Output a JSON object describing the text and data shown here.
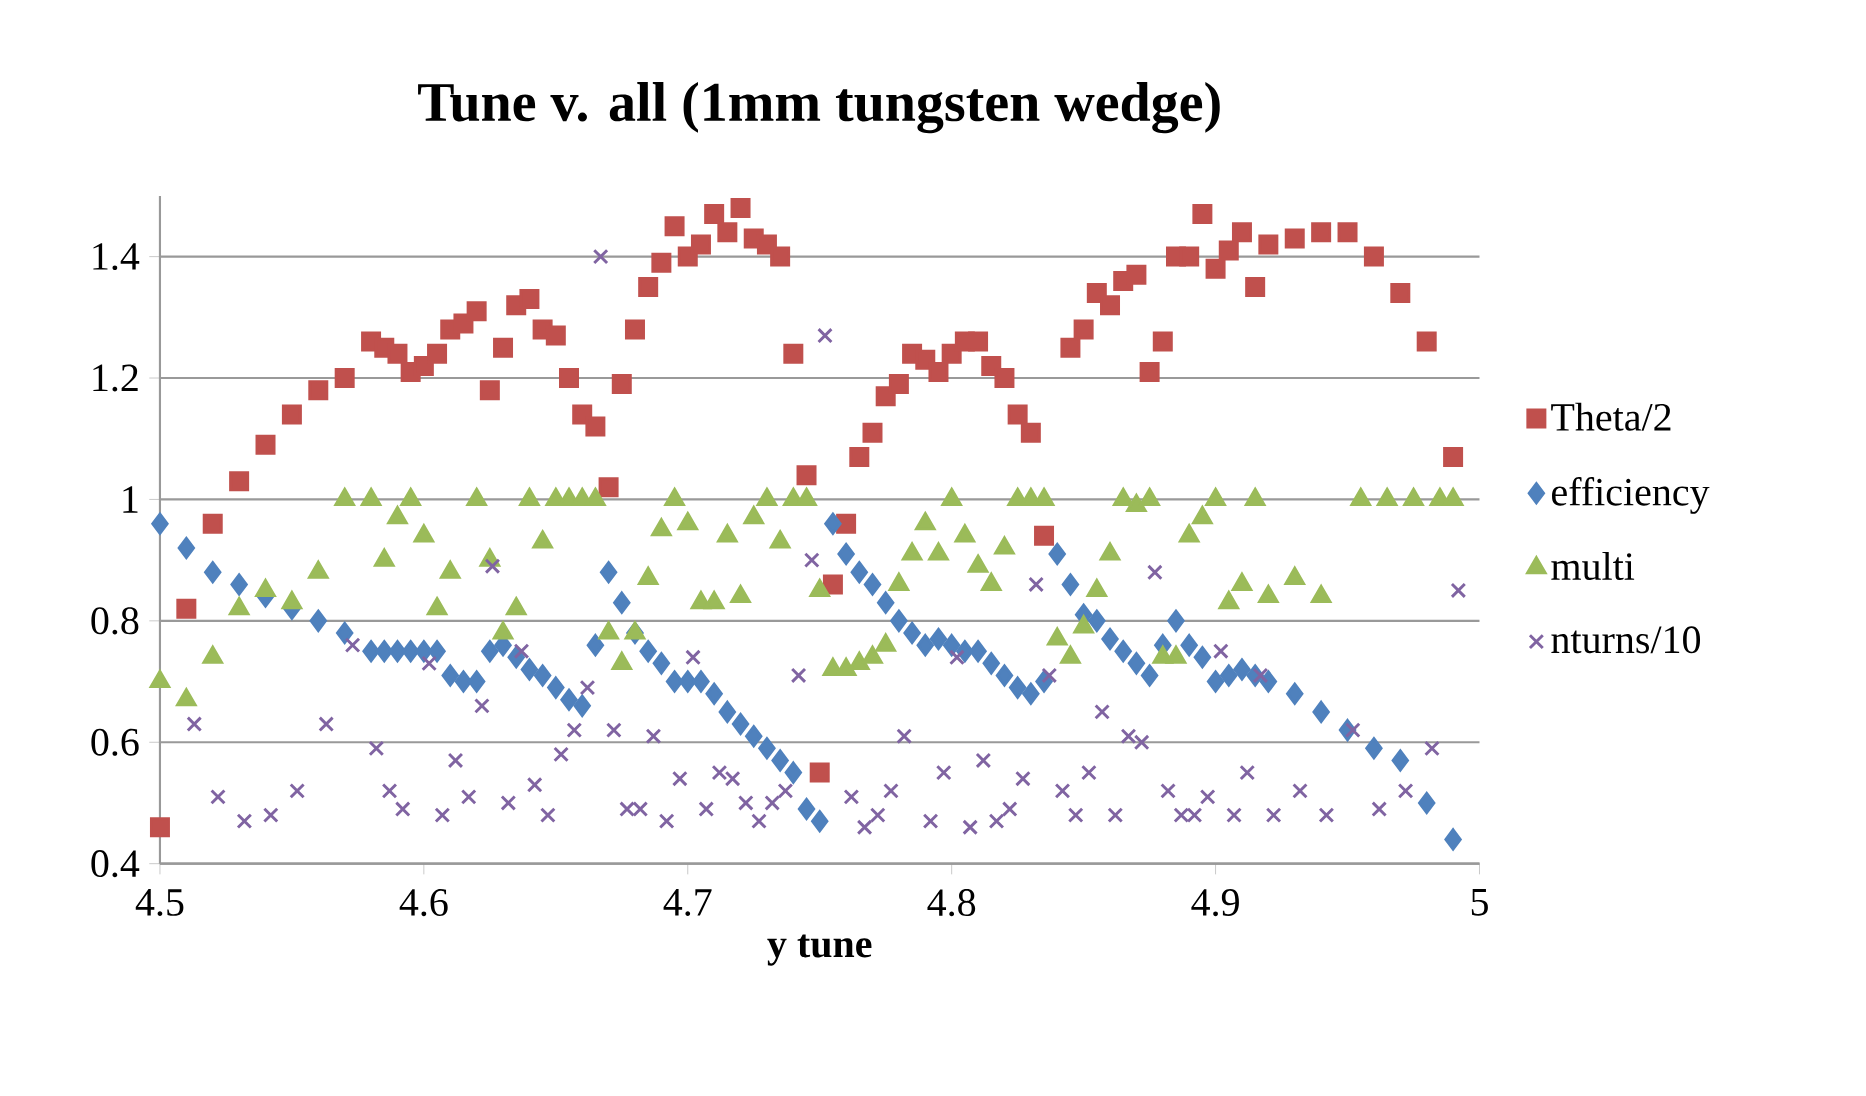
{
  "chart_data": {
    "type": "scatter",
    "title": "Tune v. all (1mm tungsten wedge)",
    "xlabel": "y tune",
    "xlim": [
      4.5,
      5
    ],
    "xticks": [
      4.5,
      4.6,
      4.7,
      4.8,
      4.9,
      5
    ],
    "ylim": [
      0.4,
      1.5
    ],
    "yticks": [
      0.4,
      0.6,
      0.8,
      1,
      1.2,
      1.4
    ],
    "grid": "y",
    "legend": "right",
    "series": [
      {
        "name": "Theta/2",
        "color": "#c0504d",
        "marker": "square",
        "x": [
          4.5,
          4.51,
          4.52,
          4.53,
          4.54,
          4.55,
          4.56,
          4.57,
          4.58,
          4.585,
          4.59,
          4.595,
          4.6,
          4.605,
          4.61,
          4.615,
          4.62,
          4.625,
          4.63,
          4.635,
          4.64,
          4.645,
          4.65,
          4.655,
          4.66,
          4.665,
          4.67,
          4.675,
          4.68,
          4.685,
          4.69,
          4.695,
          4.7,
          4.705,
          4.71,
          4.715,
          4.72,
          4.725,
          4.73,
          4.735,
          4.74,
          4.745,
          4.75,
          4.755,
          4.76,
          4.765,
          4.77,
          4.775,
          4.78,
          4.785,
          4.79,
          4.795,
          4.8,
          4.805,
          4.81,
          4.815,
          4.82,
          4.825,
          4.83,
          4.835,
          4.845,
          4.85,
          4.855,
          4.86,
          4.865,
          4.87,
          4.875,
          4.88,
          4.885,
          4.89,
          4.895,
          4.9,
          4.905,
          4.91,
          4.915,
          4.92,
          4.93,
          4.94,
          4.95,
          4.96,
          4.97,
          4.98,
          4.99
        ],
        "values": [
          0.46,
          0.82,
          0.96,
          1.03,
          1.09,
          1.14,
          1.18,
          1.2,
          1.26,
          1.25,
          1.24,
          1.21,
          1.22,
          1.24,
          1.28,
          1.29,
          1.31,
          1.18,
          1.25,
          1.32,
          1.33,
          1.28,
          1.27,
          1.2,
          1.14,
          1.12,
          1.02,
          1.19,
          1.28,
          1.35,
          1.39,
          1.45,
          1.4,
          1.42,
          1.47,
          1.44,
          1.48,
          1.43,
          1.42,
          1.4,
          1.24,
          1.04,
          0.55,
          0.86,
          0.96,
          1.07,
          1.11,
          1.17,
          1.19,
          1.24,
          1.23,
          1.21,
          1.24,
          1.26,
          1.26,
          1.22,
          1.2,
          1.14,
          1.11,
          0.94,
          1.25,
          1.28,
          1.34,
          1.32,
          1.36,
          1.37,
          1.21,
          1.26,
          1.4,
          1.4,
          1.47,
          1.38,
          1.41,
          1.44,
          1.35,
          1.42,
          1.43,
          1.44,
          1.44,
          1.4,
          1.34,
          1.26,
          1.07
        ]
      },
      {
        "name": "efficiency",
        "color": "#4f81bd",
        "marker": "diamond",
        "x": [
          4.5,
          4.51,
          4.52,
          4.53,
          4.54,
          4.55,
          4.56,
          4.57,
          4.58,
          4.585,
          4.59,
          4.595,
          4.6,
          4.605,
          4.61,
          4.615,
          4.62,
          4.625,
          4.63,
          4.635,
          4.64,
          4.645,
          4.65,
          4.655,
          4.66,
          4.665,
          4.67,
          4.675,
          4.68,
          4.685,
          4.69,
          4.695,
          4.7,
          4.705,
          4.71,
          4.715,
          4.72,
          4.725,
          4.73,
          4.735,
          4.74,
          4.745,
          4.75,
          4.755,
          4.76,
          4.765,
          4.77,
          4.775,
          4.78,
          4.785,
          4.79,
          4.795,
          4.8,
          4.805,
          4.81,
          4.815,
          4.82,
          4.825,
          4.83,
          4.835,
          4.84,
          4.845,
          4.85,
          4.855,
          4.86,
          4.865,
          4.87,
          4.875,
          4.88,
          4.885,
          4.89,
          4.895,
          4.9,
          4.905,
          4.91,
          4.915,
          4.92,
          4.93,
          4.94,
          4.95,
          4.96,
          4.97,
          4.98,
          4.99
        ],
        "values": [
          0.96,
          0.92,
          0.88,
          0.86,
          0.84,
          0.82,
          0.8,
          0.78,
          0.75,
          0.75,
          0.75,
          0.75,
          0.75,
          0.75,
          0.71,
          0.7,
          0.7,
          0.75,
          0.76,
          0.74,
          0.72,
          0.71,
          0.69,
          0.67,
          0.66,
          0.76,
          0.88,
          0.83,
          0.78,
          0.75,
          0.73,
          0.7,
          0.7,
          0.7,
          0.68,
          0.65,
          0.63,
          0.61,
          0.59,
          0.57,
          0.55,
          0.49,
          0.47,
          0.96,
          0.91,
          0.88,
          0.86,
          0.83,
          0.8,
          0.78,
          0.76,
          0.77,
          0.76,
          0.75,
          0.75,
          0.73,
          0.71,
          0.69,
          0.68,
          0.7,
          0.91,
          0.86,
          0.81,
          0.8,
          0.77,
          0.75,
          0.73,
          0.71,
          0.76,
          0.8,
          0.76,
          0.74,
          0.7,
          0.71,
          0.72,
          0.71,
          0.7,
          0.68,
          0.65,
          0.62,
          0.59,
          0.57,
          0.5,
          0.44
        ]
      },
      {
        "name": "multi",
        "color": "#9bbb59",
        "marker": "triangle",
        "x": [
          4.5,
          4.51,
          4.52,
          4.53,
          4.54,
          4.55,
          4.56,
          4.57,
          4.58,
          4.585,
          4.59,
          4.595,
          4.6,
          4.605,
          4.61,
          4.62,
          4.625,
          4.63,
          4.635,
          4.64,
          4.645,
          4.65,
          4.655,
          4.66,
          4.665,
          4.67,
          4.675,
          4.68,
          4.685,
          4.69,
          4.695,
          4.7,
          4.705,
          4.71,
          4.715,
          4.72,
          4.725,
          4.73,
          4.735,
          4.74,
          4.745,
          4.75,
          4.755,
          4.76,
          4.765,
          4.77,
          4.775,
          4.78,
          4.785,
          4.79,
          4.795,
          4.8,
          4.805,
          4.81,
          4.815,
          4.82,
          4.825,
          4.83,
          4.835,
          4.84,
          4.845,
          4.85,
          4.855,
          4.86,
          4.865,
          4.87,
          4.875,
          4.88,
          4.885,
          4.89,
          4.895,
          4.9,
          4.905,
          4.91,
          4.915,
          4.92,
          4.93,
          4.94,
          4.955,
          4.965,
          4.975,
          4.985,
          4.99
        ],
        "values": [
          0.7,
          0.67,
          0.74,
          0.82,
          0.85,
          0.83,
          0.88,
          1,
          1,
          0.9,
          0.97,
          1,
          0.94,
          0.82,
          0.88,
          1,
          0.9,
          0.78,
          0.82,
          1,
          0.93,
          1,
          1,
          1,
          1,
          0.78,
          0.73,
          0.78,
          0.87,
          0.95,
          1,
          0.96,
          0.83,
          0.83,
          0.94,
          0.84,
          0.97,
          1,
          0.93,
          1,
          1,
          0.85,
          0.72,
          0.72,
          0.73,
          0.74,
          0.76,
          0.86,
          0.91,
          0.96,
          0.91,
          1,
          0.94,
          0.89,
          0.86,
          0.92,
          1,
          1,
          1,
          0.77,
          0.74,
          0.79,
          0.85,
          0.91,
          1,
          0.99,
          1,
          0.74,
          0.74,
          0.94,
          0.97,
          1,
          0.83,
          0.86,
          1,
          0.84,
          0.87,
          0.84,
          1,
          1,
          1,
          1,
          1
        ]
      },
      {
        "name": "nturns/10",
        "color": "#8064a2",
        "marker": "cross",
        "x": [
          4.513,
          4.522,
          4.532,
          4.542,
          4.552,
          4.563,
          4.573,
          4.582,
          4.587,
          4.592,
          4.602,
          4.607,
          4.612,
          4.617,
          4.622,
          4.626,
          4.632,
          4.637,
          4.642,
          4.647,
          4.652,
          4.657,
          4.662,
          4.667,
          4.672,
          4.677,
          4.682,
          4.687,
          4.692,
          4.697,
          4.702,
          4.707,
          4.712,
          4.717,
          4.722,
          4.727,
          4.732,
          4.737,
          4.742,
          4.747,
          4.752,
          4.762,
          4.767,
          4.772,
          4.777,
          4.782,
          4.792,
          4.797,
          4.802,
          4.807,
          4.812,
          4.817,
          4.822,
          4.827,
          4.832,
          4.837,
          4.842,
          4.847,
          4.852,
          4.857,
          4.862,
          4.867,
          4.872,
          4.877,
          4.882,
          4.887,
          4.892,
          4.897,
          4.902,
          4.907,
          4.912,
          4.917,
          4.922,
          4.932,
          4.942,
          4.952,
          4.962,
          4.972,
          4.982,
          4.992
        ],
        "values": [
          0.63,
          0.51,
          0.47,
          0.48,
          0.52,
          0.63,
          0.76,
          0.59,
          0.52,
          0.49,
          0.73,
          0.48,
          0.57,
          0.51,
          0.66,
          0.89,
          0.5,
          0.75,
          0.53,
          0.48,
          0.58,
          0.62,
          0.69,
          1.4,
          0.62,
          0.49,
          0.49,
          0.61,
          0.47,
          0.54,
          0.74,
          0.49,
          0.55,
          0.54,
          0.5,
          0.47,
          0.5,
          0.52,
          0.71,
          0.9,
          1.27,
          0.51,
          0.46,
          0.48,
          0.52,
          0.61,
          0.47,
          0.55,
          0.74,
          0.46,
          0.57,
          0.47,
          0.49,
          0.54,
          0.86,
          0.71,
          0.52,
          0.48,
          0.55,
          0.65,
          0.48,
          0.61,
          0.6,
          0.88,
          0.52,
          0.48,
          0.48,
          0.51,
          0.75,
          0.48,
          0.55,
          0.71,
          0.48,
          0.52,
          0.48,
          0.62,
          0.49,
          0.52,
          0.59,
          0.85
        ]
      }
    ]
  }
}
